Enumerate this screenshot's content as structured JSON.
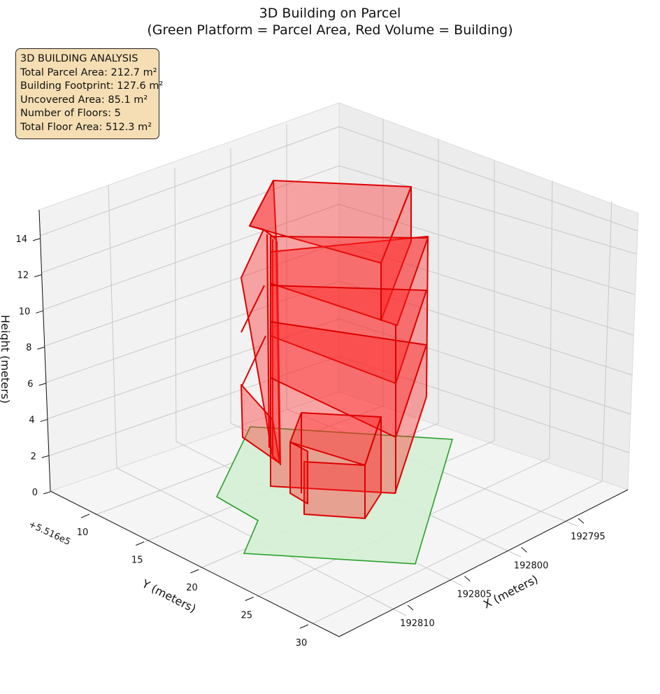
{
  "title": {
    "line1": "3D Building on Parcel",
    "line2": "(Green Platform = Parcel Area, Red Volume = Building)"
  },
  "info": {
    "heading": "3D BUILDING ANALYSIS",
    "parcel_area": "Total Parcel Area: 212.7 m²",
    "footprint": "Building Footprint: 127.6 m²",
    "uncovered": "Uncovered Area: 85.1 m²",
    "floors": "Number of Floors: 5",
    "floor_area": "Total Floor Area: 512.3 m²"
  },
  "chart_data": {
    "type": "3d-volume",
    "title": "3D Building on Parcel\n(Green Platform = Parcel Area, Red Volume = Building)",
    "xlabel": "X (meters)",
    "ylabel": "Y (meters)",
    "zlabel": "Height (meters)",
    "x_ticks": [
      "192795",
      "192800",
      "192805",
      "192810"
    ],
    "y_ticks": [
      "10",
      "15",
      "20",
      "25",
      "30"
    ],
    "y_offset_label": "+5.516e5",
    "z_ticks": [
      "0",
      "2",
      "4",
      "6",
      "8",
      "10",
      "12",
      "14"
    ],
    "legend": {
      "parcel": "Green Platform = Parcel Area",
      "building": "Red Volume = Building"
    },
    "colors": {
      "parcel_fill": "#d4f0d4",
      "parcel_edge": "#2ca02c",
      "building_fill": "#ff2020",
      "building_edge": "#dd0000",
      "info_box": "#f5deb3"
    },
    "parcel_area_m2": 212.7,
    "building_footprint_m2": 127.6,
    "uncovered_area_m2": 85.1,
    "num_floors": 5,
    "total_floor_area_m2": 512.3
  }
}
